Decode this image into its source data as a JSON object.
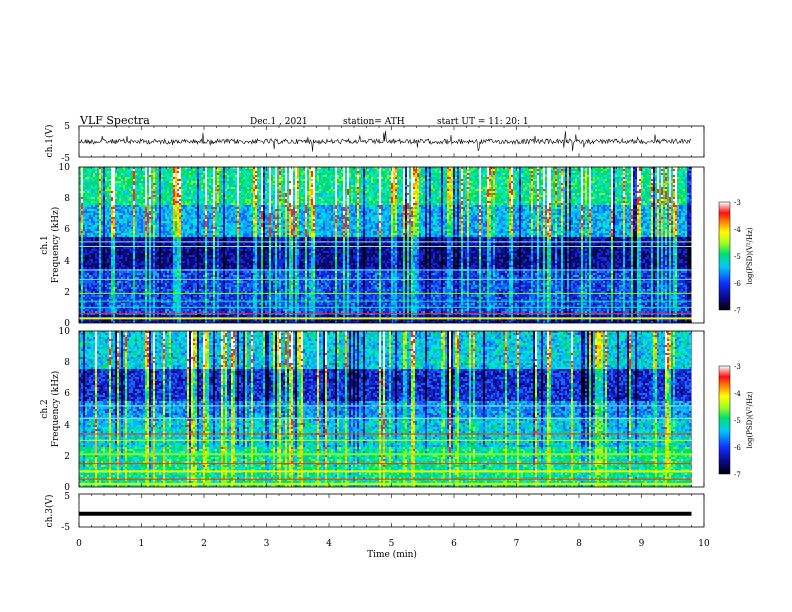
{
  "header": {
    "title": "VLF  Spectra",
    "date": "Dec.1  , 2021",
    "station": "station= ATH",
    "start": "start  UT  =    11: 20: 1"
  },
  "chart_data": [
    {
      "type": "line",
      "panel": "ch1-waveform",
      "ylabel": "ch.1(V)",
      "ylim": [
        -5,
        5
      ],
      "yticks": [
        "5",
        "-5"
      ],
      "xlim": [
        0,
        10
      ],
      "x_end": 9.8
    },
    {
      "type": "heatmap",
      "panel": "ch1-spectrogram",
      "ylabel_line1": "ch.1",
      "ylabel_line2": "Frequency  (kHz)",
      "ylim": [
        0,
        10
      ],
      "yticks": [
        "0",
        "2",
        "4",
        "6",
        "8",
        "10"
      ],
      "xlim": [
        0,
        10
      ],
      "x_end": 9.8,
      "colorbar": {
        "label": "log(PSD)(V²/Hz)",
        "range": [
          -7,
          -3
        ],
        "ticks": [
          "-3",
          "-4",
          "-5",
          "-6",
          "-7"
        ]
      }
    },
    {
      "type": "heatmap",
      "panel": "ch2-spectrogram",
      "ylabel_line1": "ch.2",
      "ylabel_line2": "Frequency  (kHz)",
      "ylim": [
        0,
        10
      ],
      "yticks": [
        "0",
        "2",
        "4",
        "6",
        "8",
        "10"
      ],
      "xlim": [
        0,
        10
      ],
      "x_end": 9.8,
      "colorbar": {
        "label": "log(PSD)(V²/Hz)",
        "range": [
          -7,
          -3
        ],
        "ticks": [
          "-3",
          "-4",
          "-5",
          "-6",
          "-7"
        ]
      }
    },
    {
      "type": "line",
      "panel": "ch3-waveform",
      "ylabel": "ch.3(V)",
      "ylim": [
        -5,
        5
      ],
      "yticks": [
        "5",
        "-5"
      ],
      "xlim": [
        0,
        10
      ],
      "x_end": 9.8,
      "level": -1,
      "xlabel": "Time  (min)",
      "xticks": [
        "0",
        "1",
        "2",
        "3",
        "4",
        "5",
        "6",
        "7",
        "8",
        "9",
        "10"
      ]
    }
  ]
}
